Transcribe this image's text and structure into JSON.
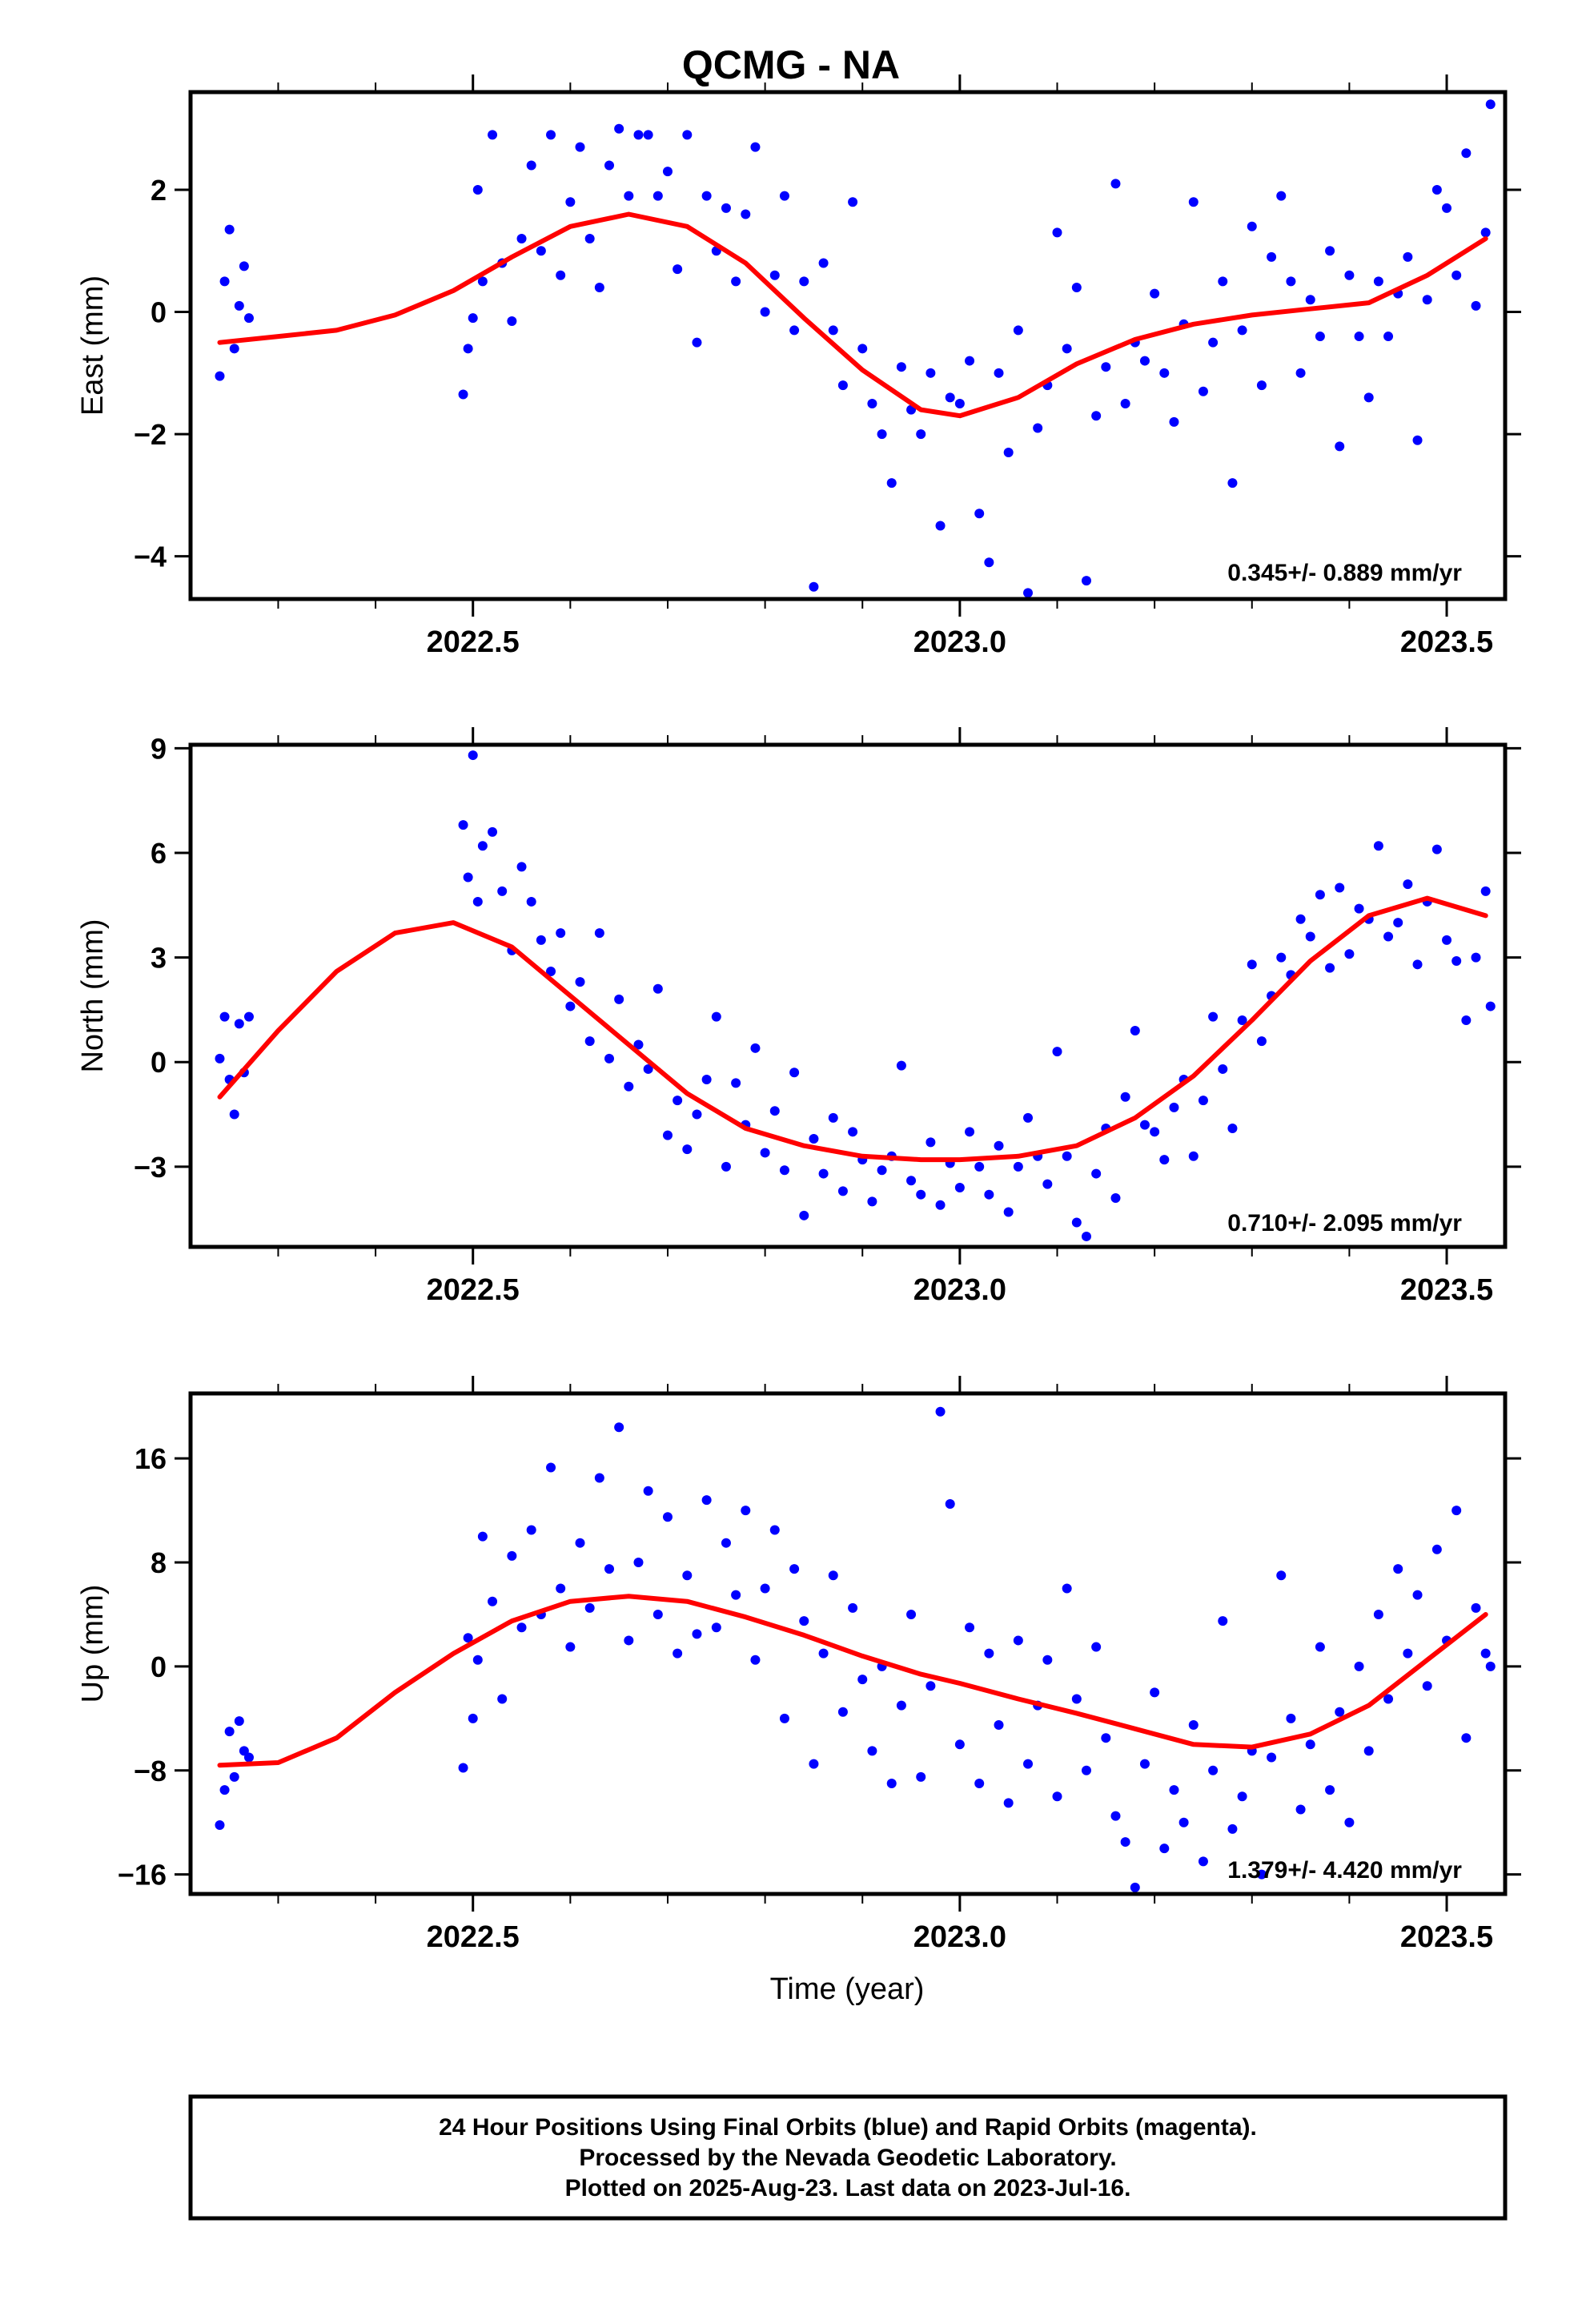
{
  "title": "QCMG - NA",
  "xlabel": "Time (year)",
  "footer": {
    "lines": [
      "24 Hour Positions Using Final Orbits (blue) and Rapid Orbits (magenta).",
      "Processed by the Nevada Geodetic Laboratory.",
      "Plotted on 2025-Aug-23. Last data on 2023-Jul-16."
    ]
  },
  "colors": {
    "points": "#0000ff",
    "fit": "#ff0000",
    "axis": "#000000"
  },
  "chart_data": [
    {
      "type": "scatter",
      "name": "East",
      "ylabel": "East (mm)",
      "rate_text": "0.345+/- 0.889 mm/yr",
      "xlim": [
        2022.21,
        2023.56
      ],
      "ylim": [
        -4.7,
        3.6
      ],
      "xticks": [
        2022.5,
        2023.0,
        2023.5
      ],
      "xtick_labels": [
        "2022.5",
        "2023.0",
        "2023.5"
      ],
      "yticks": [
        2,
        0,
        -2,
        -4
      ],
      "ytick_labels": [
        "2",
        "0",
        "−2",
        "−4"
      ],
      "fit": {
        "x": [
          2022.24,
          2022.3,
          2022.36,
          2022.42,
          2022.48,
          2022.54,
          2022.6,
          2022.66,
          2022.72,
          2022.78,
          2022.84,
          2022.9,
          2022.96,
          2023.0,
          2023.06,
          2023.12,
          2023.18,
          2023.24,
          2023.3,
          2023.36,
          2023.42,
          2023.48,
          2023.54
        ],
        "y": [
          -0.5,
          -0.4,
          -0.3,
          -0.05,
          0.35,
          0.9,
          1.4,
          1.6,
          1.4,
          0.8,
          -0.1,
          -0.95,
          -1.6,
          -1.7,
          -1.4,
          -0.85,
          -0.45,
          -0.2,
          -0.05,
          0.05,
          0.15,
          0.6,
          1.2
        ]
      },
      "series": [
        {
          "name": "Final Orbits",
          "x": [
            2022.24,
            2022.245,
            2022.25,
            2022.255,
            2022.26,
            2022.265,
            2022.27,
            2022.49,
            2022.495,
            2022.5,
            2022.505,
            2022.51,
            2022.52,
            2022.53,
            2022.54,
            2022.55,
            2022.56,
            2022.57,
            2022.58,
            2022.59,
            2022.6,
            2022.61,
            2022.62,
            2022.63,
            2022.64,
            2022.65,
            2022.66,
            2022.67,
            2022.68,
            2022.69,
            2022.7,
            2022.71,
            2022.72,
            2022.73,
            2022.74,
            2022.75,
            2022.76,
            2022.77,
            2022.78,
            2022.79,
            2022.8,
            2022.81,
            2022.82,
            2022.83,
            2022.84,
            2022.85,
            2022.86,
            2022.87,
            2022.88,
            2022.89,
            2022.9,
            2022.91,
            2022.92,
            2022.93,
            2022.94,
            2022.95,
            2022.96,
            2022.97,
            2022.98,
            2022.99,
            2023.0,
            2023.01,
            2023.02,
            2023.03,
            2023.04,
            2023.05,
            2023.06,
            2023.07,
            2023.08,
            2023.09,
            2023.1,
            2023.11,
            2023.12,
            2023.13,
            2023.14,
            2023.15,
            2023.16,
            2023.17,
            2023.18,
            2023.19,
            2023.2,
            2023.21,
            2023.22,
            2023.23,
            2023.24,
            2023.25,
            2023.26,
            2023.27,
            2023.28,
            2023.29,
            2023.3,
            2023.31,
            2023.32,
            2023.33,
            2023.34,
            2023.35,
            2023.36,
            2023.37,
            2023.38,
            2023.39,
            2023.4,
            2023.41,
            2023.42,
            2023.43,
            2023.44,
            2023.45,
            2023.46,
            2023.47,
            2023.48,
            2023.49,
            2023.5,
            2023.51,
            2023.52,
            2023.53,
            2023.54,
            2023.545
          ],
          "y": [
            -1.05,
            0.5,
            1.35,
            -0.6,
            0.1,
            0.75,
            -0.1,
            -1.35,
            -0.6,
            -0.1,
            2.0,
            0.5,
            2.9,
            0.8,
            -0.15,
            1.2,
            2.4,
            1.0,
            2.9,
            0.6,
            1.8,
            2.7,
            1.2,
            0.4,
            2.4,
            3.0,
            1.9,
            2.9,
            2.9,
            1.9,
            2.3,
            0.7,
            2.9,
            -0.5,
            1.9,
            1.0,
            1.7,
            0.5,
            1.6,
            2.7,
            0.0,
            0.6,
            1.9,
            -0.3,
            0.5,
            -4.5,
            0.8,
            -0.3,
            -1.2,
            1.8,
            -0.6,
            -1.5,
            -2.0,
            -2.8,
            -0.9,
            -1.6,
            -2.0,
            -1.0,
            -3.5,
            -1.4,
            -1.5,
            -0.8,
            -3.3,
            -4.1,
            -1.0,
            -2.3,
            -0.3,
            -4.6,
            -1.9,
            -1.2,
            1.3,
            -0.6,
            0.4,
            -4.4,
            -1.7,
            -0.9,
            2.1,
            -1.5,
            -0.5,
            -0.8,
            0.3,
            -1.0,
            -1.8,
            -0.2,
            1.8,
            -1.3,
            -0.5,
            0.5,
            -2.8,
            -0.3,
            1.4,
            -1.2,
            0.9,
            1.9,
            0.5,
            -1.0,
            0.2,
            -0.4,
            1.0,
            -2.2,
            0.6,
            -0.4,
            -1.4,
            0.5,
            -0.4,
            0.3,
            0.9,
            -2.1,
            0.2,
            2.0,
            1.7,
            0.6,
            2.6,
            0.1,
            1.3,
            3.4
          ]
        }
      ]
    },
    {
      "type": "scatter",
      "name": "North",
      "ylabel": "North (mm)",
      "rate_text": "0.710+/- 2.095 mm/yr",
      "xlim": [
        2022.21,
        2023.56
      ],
      "ylim": [
        -5.3,
        9.1
      ],
      "xticks": [
        2022.5,
        2023.0,
        2023.5
      ],
      "xtick_labels": [
        "2022.5",
        "2023.0",
        "2023.5"
      ],
      "yticks": [
        9,
        6,
        3,
        0,
        -3
      ],
      "ytick_labels": [
        "9",
        "6",
        "3",
        "0",
        "−3"
      ],
      "fit": {
        "x": [
          2022.24,
          2022.3,
          2022.36,
          2022.42,
          2022.48,
          2022.54,
          2022.6,
          2022.66,
          2022.72,
          2022.78,
          2022.84,
          2022.9,
          2022.96,
          2023.0,
          2023.06,
          2023.12,
          2023.18,
          2023.24,
          2023.3,
          2023.36,
          2023.42,
          2023.48,
          2023.54
        ],
        "y": [
          -1.0,
          0.9,
          2.6,
          3.7,
          4.0,
          3.3,
          1.9,
          0.5,
          -0.9,
          -1.9,
          -2.4,
          -2.7,
          -2.8,
          -2.8,
          -2.7,
          -2.4,
          -1.6,
          -0.4,
          1.2,
          2.9,
          4.2,
          4.7,
          4.2
        ]
      },
      "series": [
        {
          "name": "Final Orbits",
          "x": [
            2022.24,
            2022.245,
            2022.25,
            2022.255,
            2022.26,
            2022.265,
            2022.27,
            2022.49,
            2022.495,
            2022.5,
            2022.505,
            2022.51,
            2022.52,
            2022.53,
            2022.54,
            2022.55,
            2022.56,
            2022.57,
            2022.58,
            2022.59,
            2022.6,
            2022.61,
            2022.62,
            2022.63,
            2022.64,
            2022.65,
            2022.66,
            2022.67,
            2022.68,
            2022.69,
            2022.7,
            2022.71,
            2022.72,
            2022.73,
            2022.74,
            2022.75,
            2022.76,
            2022.77,
            2022.78,
            2022.79,
            2022.8,
            2022.81,
            2022.82,
            2022.83,
            2022.84,
            2022.85,
            2022.86,
            2022.87,
            2022.88,
            2022.89,
            2022.9,
            2022.91,
            2022.92,
            2022.93,
            2022.94,
            2022.95,
            2022.96,
            2022.97,
            2022.98,
            2022.99,
            2023.0,
            2023.01,
            2023.02,
            2023.03,
            2023.04,
            2023.05,
            2023.06,
            2023.07,
            2023.08,
            2023.09,
            2023.1,
            2023.11,
            2023.12,
            2023.13,
            2023.14,
            2023.15,
            2023.16,
            2023.17,
            2023.18,
            2023.19,
            2023.2,
            2023.21,
            2023.22,
            2023.23,
            2023.24,
            2023.25,
            2023.26,
            2023.27,
            2023.28,
            2023.29,
            2023.3,
            2023.31,
            2023.32,
            2023.33,
            2023.34,
            2023.35,
            2023.36,
            2023.37,
            2023.38,
            2023.39,
            2023.4,
            2023.41,
            2023.42,
            2023.43,
            2023.44,
            2023.45,
            2023.46,
            2023.47,
            2023.48,
            2023.49,
            2023.5,
            2023.51,
            2023.52,
            2023.53,
            2023.54,
            2023.545
          ],
          "y": [
            0.1,
            1.3,
            -0.5,
            -1.5,
            1.1,
            -0.3,
            1.3,
            6.8,
            5.3,
            8.8,
            4.6,
            6.2,
            6.6,
            4.9,
            3.2,
            5.6,
            4.6,
            3.5,
            2.6,
            3.7,
            1.6,
            2.3,
            0.6,
            3.7,
            0.1,
            1.8,
            -0.7,
            0.5,
            -0.2,
            2.1,
            -2.1,
            -1.1,
            -2.5,
            -1.5,
            -0.5,
            1.3,
            -3.0,
            -0.6,
            -1.8,
            0.4,
            -2.6,
            -1.4,
            -3.1,
            -0.3,
            -4.4,
            -2.2,
            -3.2,
            -1.6,
            -3.7,
            -2.0,
            -2.8,
            -4.0,
            -3.1,
            -2.7,
            -0.1,
            -3.4,
            -3.8,
            -2.3,
            -4.1,
            -2.9,
            -3.6,
            -2.0,
            -3.0,
            -3.8,
            -2.4,
            -4.3,
            -3.0,
            -1.6,
            -2.7,
            -3.5,
            0.3,
            -2.7,
            -4.6,
            -5.0,
            -3.2,
            -1.9,
            -3.9,
            -1.0,
            0.9,
            -1.8,
            -2.0,
            -2.8,
            -1.3,
            -0.5,
            -2.7,
            -1.1,
            1.3,
            -0.2,
            -1.9,
            1.2,
            2.8,
            0.6,
            1.9,
            3.0,
            2.5,
            4.1,
            3.6,
            4.8,
            2.7,
            5.0,
            3.1,
            4.4,
            4.1,
            6.2,
            3.6,
            4.0,
            5.1,
            2.8,
            4.6,
            6.1,
            3.5,
            2.9,
            1.2,
            3.0,
            4.9,
            1.6
          ]
        }
      ]
    },
    {
      "type": "scatter",
      "name": "Up",
      "ylabel": "Up (mm)",
      "rate_text": "1.379+/- 4.420 mm/yr",
      "xlim": [
        2022.21,
        2023.56
      ],
      "ylim": [
        -17.5,
        21.0
      ],
      "xticks": [
        2022.5,
        2023.0,
        2023.5
      ],
      "xtick_labels": [
        "2022.5",
        "2023.0",
        "2023.5"
      ],
      "yticks": [
        16,
        8,
        0,
        -8,
        -16
      ],
      "ytick_labels": [
        "16",
        "8",
        "0",
        "−8",
        "−16"
      ],
      "fit": {
        "x": [
          2022.24,
          2022.3,
          2022.36,
          2022.42,
          2022.48,
          2022.54,
          2022.6,
          2022.66,
          2022.72,
          2022.78,
          2022.84,
          2022.9,
          2022.96,
          2023.0,
          2023.06,
          2023.12,
          2023.18,
          2023.24,
          2023.3,
          2023.36,
          2023.42,
          2023.48,
          2023.54
        ],
        "y": [
          -7.6,
          -7.4,
          -5.5,
          -2.0,
          1.0,
          3.5,
          5.0,
          5.4,
          5.0,
          3.8,
          2.4,
          0.8,
          -0.6,
          -1.3,
          -2.5,
          -3.6,
          -4.8,
          -6.0,
          -6.2,
          -5.2,
          -3.0,
          0.5,
          4.0
        ]
      },
      "series": [
        {
          "name": "Final Orbits",
          "x": [
            2022.24,
            2022.245,
            2022.25,
            2022.255,
            2022.26,
            2022.265,
            2022.27,
            2022.49,
            2022.495,
            2022.5,
            2022.505,
            2022.51,
            2022.52,
            2022.53,
            2022.54,
            2022.55,
            2022.56,
            2022.57,
            2022.58,
            2022.59,
            2022.6,
            2022.61,
            2022.62,
            2022.63,
            2022.64,
            2022.65,
            2022.66,
            2022.67,
            2022.68,
            2022.69,
            2022.7,
            2022.71,
            2022.72,
            2022.73,
            2022.74,
            2022.75,
            2022.76,
            2022.77,
            2022.78,
            2022.79,
            2022.8,
            2022.81,
            2022.82,
            2022.83,
            2022.84,
            2022.85,
            2022.86,
            2022.87,
            2022.88,
            2022.89,
            2022.9,
            2022.91,
            2022.92,
            2022.93,
            2022.94,
            2022.95,
            2022.96,
            2022.97,
            2022.98,
            2022.99,
            2023.0,
            2023.01,
            2023.02,
            2023.03,
            2023.04,
            2023.05,
            2023.06,
            2023.07,
            2023.08,
            2023.09,
            2023.1,
            2023.11,
            2023.12,
            2023.13,
            2023.14,
            2023.15,
            2023.16,
            2023.17,
            2023.18,
            2023.19,
            2023.2,
            2023.21,
            2023.22,
            2023.23,
            2023.24,
            2023.25,
            2023.26,
            2023.27,
            2023.28,
            2023.29,
            2023.3,
            2023.31,
            2023.32,
            2023.33,
            2023.34,
            2023.35,
            2023.36,
            2023.37,
            2023.38,
            2023.39,
            2023.4,
            2023.41,
            2023.42,
            2023.43,
            2023.44,
            2023.45,
            2023.46,
            2023.47,
            2023.48,
            2023.49,
            2023.5,
            2023.51,
            2023.52,
            2023.53,
            2023.54,
            2023.545
          ],
          "y": [
            -12.2,
            -9.5,
            -5.0,
            -8.5,
            -4.2,
            -6.5,
            -7.0,
            -7.8,
            2.2,
            -4.0,
            0.5,
            10.0,
            5.0,
            -2.5,
            8.5,
            3.0,
            10.5,
            4.0,
            15.3,
            6.0,
            1.5,
            9.5,
            4.5,
            14.5,
            7.5,
            18.4,
            2.0,
            8.0,
            13.5,
            4.0,
            11.5,
            1.0,
            7.0,
            2.5,
            12.8,
            3.0,
            9.5,
            5.5,
            12.0,
            0.5,
            6.0,
            10.5,
            -4.0,
            7.5,
            3.5,
            -7.5,
            1.0,
            7.0,
            -3.5,
            4.5,
            -1.0,
            -6.5,
            0.0,
            -9.0,
            -3.0,
            4.0,
            -8.5,
            -1.5,
            19.6,
            12.5,
            -6.0,
            3.0,
            -9.0,
            1.0,
            -4.5,
            -10.5,
            2.0,
            -7.5,
            -3.0,
            0.5,
            -10.0,
            6.0,
            -2.5,
            -8.0,
            1.5,
            -5.5,
            -11.5,
            -13.5,
            -17.0,
            -7.5,
            -2.0,
            -14.0,
            -9.5,
            -12.0,
            -4.5,
            -15.0,
            -8.0,
            3.5,
            -12.5,
            -10.0,
            -6.5,
            -16.0,
            -7.0,
            7.0,
            -4.0,
            -11.0,
            -6.0,
            1.5,
            -9.5,
            -3.5,
            -12.0,
            0.0,
            -6.5,
            4.0,
            -2.5,
            7.5,
            1.0,
            5.5,
            -1.5,
            9.0,
            2.0,
            12.0,
            -5.5,
            4.5,
            1.0,
            0.0
          ]
        }
      ]
    }
  ]
}
